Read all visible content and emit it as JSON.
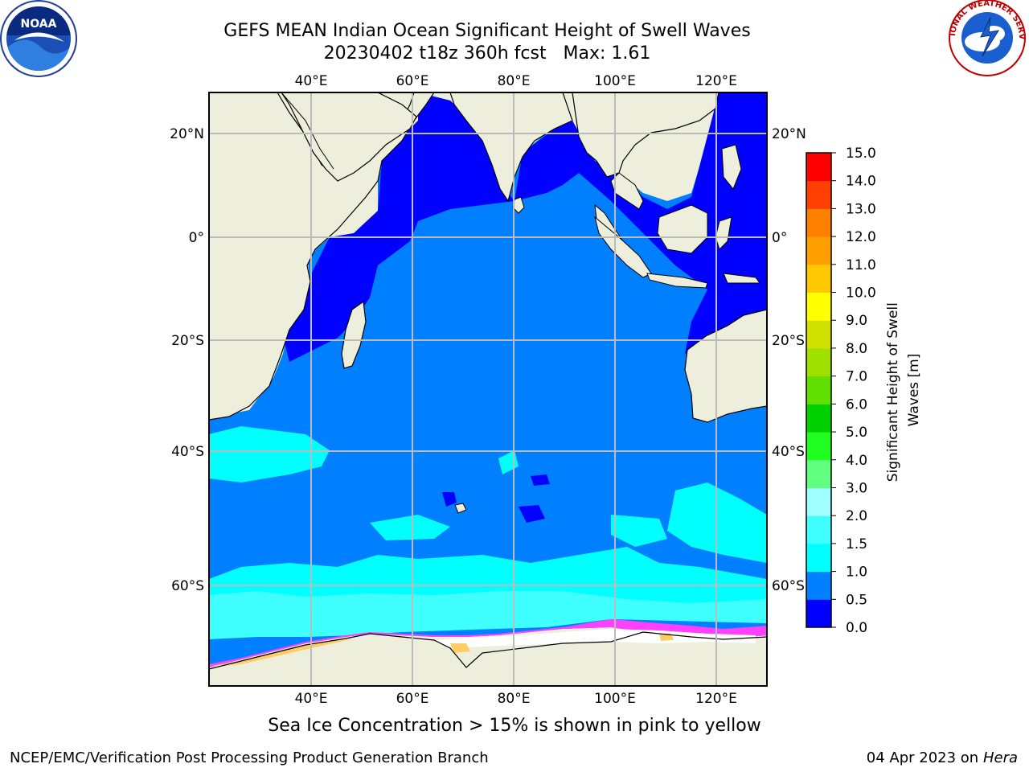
{
  "title": {
    "line1": "GEFS MEAN Indian Ocean Significant Height of Swell Waves",
    "line2": "20230402 t18z 360h fcst   Max: 1.61"
  },
  "map": {
    "lon_labels": [
      "40°E",
      "60°E",
      "80°E",
      "100°E",
      "120°E"
    ],
    "lat_labels": [
      "20°N",
      "0°",
      "20°S",
      "40°S",
      "60°S"
    ],
    "lon_range": [
      20,
      130
    ],
    "lat_range": [
      -74,
      28
    ]
  },
  "colorbar": {
    "title": "Significant Height of Swell Waves [m]",
    "levels": [
      "0.0",
      "0.5",
      "1.0",
      "1.5",
      "2.0",
      "3.0",
      "4.0",
      "5.0",
      "6.0",
      "7.0",
      "8.0",
      "9.0",
      "10.0",
      "11.0",
      "12.0",
      "13.0",
      "14.0",
      "15.0"
    ],
    "colors": [
      "#0000ff",
      "#0080ff",
      "#00ffff",
      "#40ffff",
      "#a0ffff",
      "#60ff80",
      "#20ff20",
      "#00d000",
      "#60e000",
      "#a0e000",
      "#d0e000",
      "#ffff00",
      "#ffc800",
      "#ffa000",
      "#ff8000",
      "#ff4000",
      "#ff0000"
    ]
  },
  "logos": {
    "noaa": "NOAA",
    "nws": "NATIONAL WEATHER SERVICE"
  },
  "ice_note": "Sea Ice Concentration > 15% is shown in pink to yellow",
  "footer": {
    "left": "NCEP/EMC/Verification Post Processing Product Generation Branch",
    "right_date": "04 Apr 2023 on ",
    "right_host": "Hera"
  }
}
